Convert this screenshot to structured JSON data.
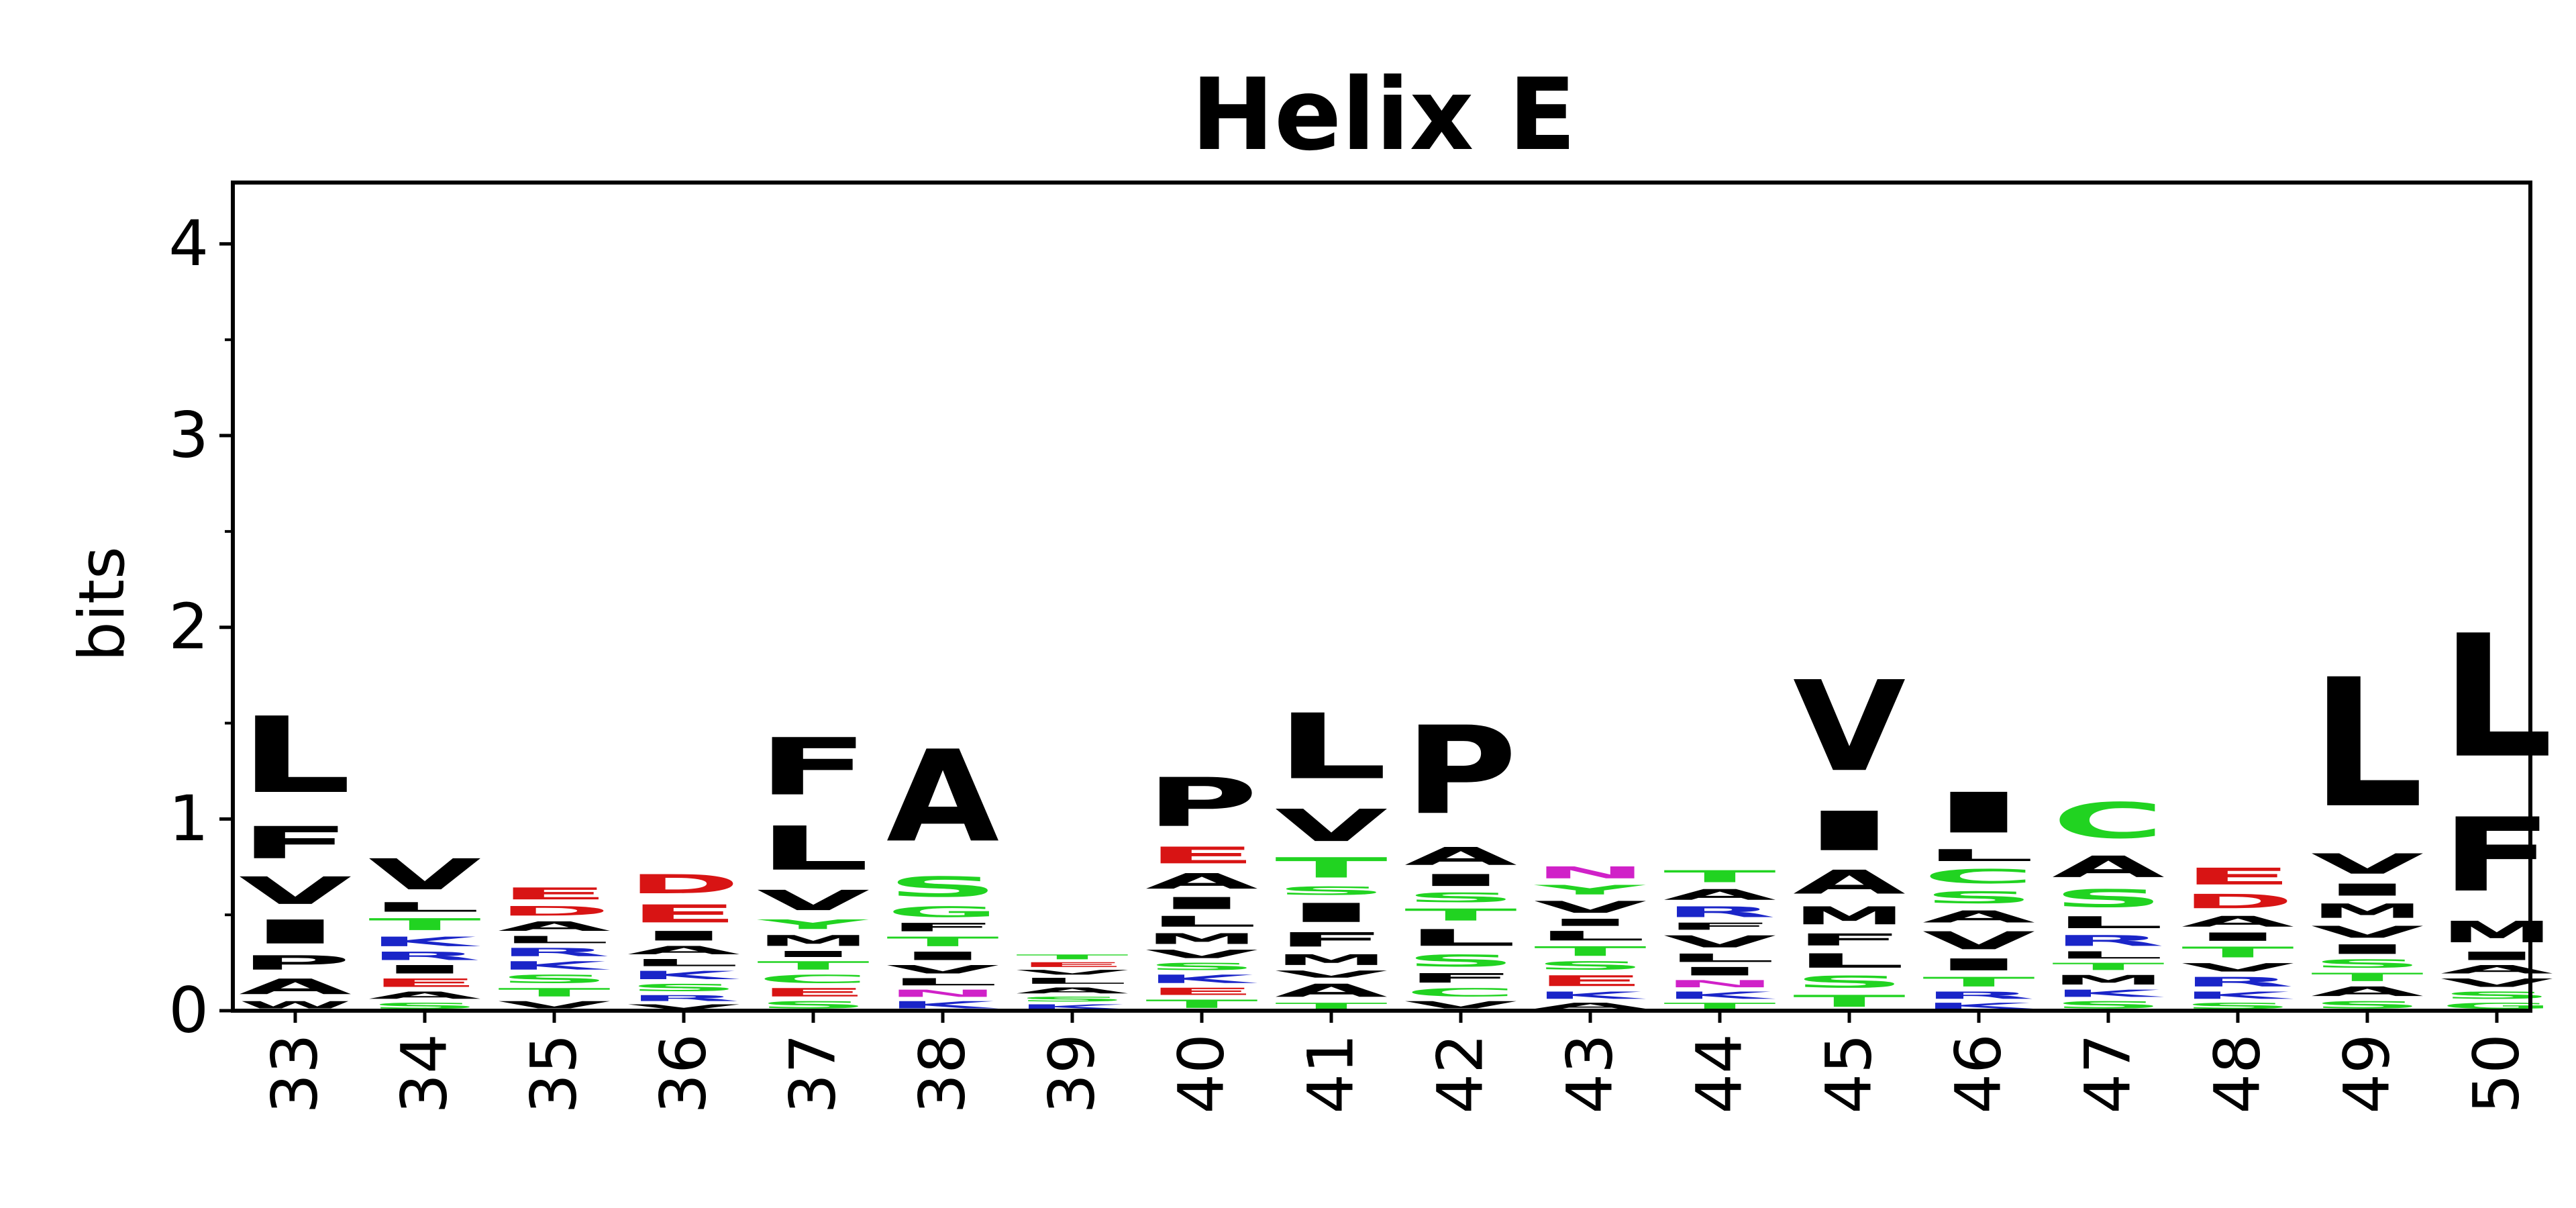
{
  "chart_data": {
    "type": "sequence-logo",
    "title": "Helix E",
    "ylabel": "bits",
    "xlabel": "",
    "ylim": [
      0,
      4.32
    ],
    "yticks_major": [
      0,
      1,
      2,
      3,
      4
    ],
    "yticks_minor": [
      0.5,
      1.5,
      2.5,
      3.5
    ],
    "grid": false,
    "colors": {
      "L": "#000000",
      "V": "#000000",
      "I": "#000000",
      "F": "#000000",
      "A": "#000000",
      "P": "#000000",
      "M": "#000000",
      "W": "#000000",
      "Y": "#21d321",
      "D": "#d81414",
      "E": "#d81414",
      "K": "#1a25c8",
      "R": "#1a25c8",
      "H": "#1a25c8",
      "S": "#21d321",
      "T": "#21d321",
      "G": "#21d321",
      "C": "#21d321",
      "N": "#d021c8",
      "Q": "#d021c8"
    },
    "positions": [
      {
        "label": "33",
        "letters": [
          [
            "W",
            0.06
          ],
          [
            "A",
            0.13
          ],
          [
            "P",
            0.12
          ],
          [
            "I",
            0.2
          ],
          [
            "V",
            0.23
          ],
          [
            "F",
            0.27
          ],
          [
            "L",
            0.64
          ]
        ]
      },
      {
        "label": "34",
        "letters": [
          [
            "S",
            0.05
          ],
          [
            "A",
            0.06
          ],
          [
            "E",
            0.07
          ],
          [
            "I",
            0.07
          ],
          [
            "R",
            0.07
          ],
          [
            "K",
            0.08
          ],
          [
            "T",
            0.1
          ],
          [
            "L",
            0.08
          ],
          [
            "V",
            0.26
          ]
        ]
      },
      {
        "label": "35",
        "letters": [
          [
            "V",
            0.06
          ],
          [
            "T",
            0.07
          ],
          [
            "S",
            0.07
          ],
          [
            "K",
            0.07
          ],
          [
            "R",
            0.07
          ],
          [
            "L",
            0.06
          ],
          [
            "A",
            0.08
          ],
          [
            "D",
            0.08
          ],
          [
            "E",
            0.1
          ]
        ]
      },
      {
        "label": "36",
        "letters": [
          [
            "V",
            0.04
          ],
          [
            "R",
            0.05
          ],
          [
            "S",
            0.06
          ],
          [
            "K",
            0.07
          ],
          [
            "L",
            0.06
          ],
          [
            "A",
            0.07
          ],
          [
            "I",
            0.08
          ],
          [
            "E",
            0.15
          ],
          [
            "D",
            0.16
          ]
        ]
      },
      {
        "label": "37",
        "letters": [
          [
            "S",
            0.06
          ],
          [
            "E",
            0.07
          ],
          [
            "C",
            0.07
          ],
          [
            "T",
            0.07
          ],
          [
            "I",
            0.05
          ],
          [
            "M",
            0.09
          ],
          [
            "Y",
            0.08
          ],
          [
            "V",
            0.17
          ],
          [
            "L",
            0.37
          ],
          [
            "F",
            0.48
          ]
        ]
      },
      {
        "label": "38",
        "letters": [
          [
            "K",
            0.06
          ],
          [
            "N",
            0.06
          ],
          [
            "L",
            0.06
          ],
          [
            "V",
            0.07
          ],
          [
            "I",
            0.07
          ],
          [
            "T",
            0.08
          ],
          [
            "F",
            0.07
          ],
          [
            "G",
            0.09
          ],
          [
            "S",
            0.17
          ],
          [
            "A",
            0.77
          ]
        ]
      },
      {
        "label": "39",
        "letters": [
          [
            "K",
            0.04
          ],
          [
            "S",
            0.04
          ],
          [
            "A",
            0.05
          ],
          [
            "L",
            0.05
          ],
          [
            "V",
            0.04
          ],
          [
            "E",
            0.04
          ],
          [
            "T",
            0.04
          ]
        ]
      },
      {
        "label": "40",
        "letters": [
          [
            "T",
            0.07
          ],
          [
            "E",
            0.06
          ],
          [
            "K",
            0.07
          ],
          [
            "S",
            0.06
          ],
          [
            "V",
            0.07
          ],
          [
            "M",
            0.09
          ],
          [
            "L",
            0.09
          ],
          [
            "I",
            0.1
          ],
          [
            "A",
            0.13
          ],
          [
            "E",
            0.14
          ],
          [
            "P",
            0.41
          ]
        ]
      },
      {
        "label": "41",
        "letters": [
          [
            "T",
            0.05
          ],
          [
            "A",
            0.11
          ],
          [
            "V",
            0.06
          ],
          [
            "M",
            0.09
          ],
          [
            "F",
            0.12
          ],
          [
            "I",
            0.16
          ],
          [
            "S",
            0.07
          ],
          [
            "T",
            0.17
          ],
          [
            "V",
            0.27
          ],
          [
            "L",
            0.55
          ]
        ]
      },
      {
        "label": "42",
        "letters": [
          [
            "V",
            0.06
          ],
          [
            "C",
            0.07
          ],
          [
            "F",
            0.08
          ],
          [
            "S",
            0.1
          ],
          [
            "L",
            0.14
          ],
          [
            "T",
            0.1
          ],
          [
            "S",
            0.08
          ],
          [
            "I",
            0.1
          ],
          [
            "A",
            0.15
          ],
          [
            "P",
            0.74
          ]
        ]
      },
      {
        "label": "43",
        "letters": [
          [
            "A",
            0.05
          ],
          [
            "K",
            0.06
          ],
          [
            "E",
            0.09
          ],
          [
            "S",
            0.07
          ],
          [
            "T",
            0.08
          ],
          [
            "L",
            0.08
          ],
          [
            "I",
            0.06
          ],
          [
            "V",
            0.1
          ],
          [
            "Y",
            0.08
          ],
          [
            "N",
            0.1
          ]
        ]
      },
      {
        "label": "44",
        "letters": [
          [
            "T",
            0.05
          ],
          [
            "K",
            0.06
          ],
          [
            "N",
            0.06
          ],
          [
            "I",
            0.07
          ],
          [
            "L",
            0.07
          ],
          [
            "V",
            0.1
          ],
          [
            "F",
            0.06
          ],
          [
            "R",
            0.09
          ],
          [
            "A",
            0.09
          ],
          [
            "T",
            0.1
          ]
        ]
      },
      {
        "label": "45",
        "letters": [
          [
            "T",
            0.1
          ],
          [
            "S",
            0.1
          ],
          [
            "L",
            0.12
          ],
          [
            "F",
            0.1
          ],
          [
            "M",
            0.15
          ],
          [
            "A",
            0.2
          ],
          [
            "I",
            0.33
          ],
          [
            "V",
            0.76
          ]
        ]
      },
      {
        "label": "46",
        "letters": [
          [
            "K",
            0.05
          ],
          [
            "R",
            0.06
          ],
          [
            "T",
            0.08
          ],
          [
            "I",
            0.1
          ],
          [
            "V",
            0.15
          ],
          [
            "A",
            0.1
          ],
          [
            "S",
            0.1
          ],
          [
            "C",
            0.12
          ],
          [
            "L",
            0.1
          ],
          [
            "I",
            0.34
          ]
        ]
      },
      {
        "label": "47",
        "letters": [
          [
            "S",
            0.06
          ],
          [
            "K",
            0.06
          ],
          [
            "M",
            0.08
          ],
          [
            "T",
            0.06
          ],
          [
            "L",
            0.06
          ],
          [
            "R",
            0.09
          ],
          [
            "L",
            0.1
          ],
          [
            "S",
            0.15
          ],
          [
            "A",
            0.18
          ],
          [
            "C",
            0.3
          ]
        ]
      },
      {
        "label": "48",
        "letters": [
          [
            "S",
            0.05
          ],
          [
            "K",
            0.06
          ],
          [
            "R",
            0.08
          ],
          [
            "V",
            0.07
          ],
          [
            "T",
            0.09
          ],
          [
            "I",
            0.07
          ],
          [
            "A",
            0.09
          ],
          [
            "D",
            0.12
          ],
          [
            "E",
            0.14
          ]
        ]
      },
      {
        "label": "49",
        "letters": [
          [
            "S",
            0.06
          ],
          [
            "A",
            0.08
          ],
          [
            "T",
            0.07
          ],
          [
            "S",
            0.07
          ],
          [
            "I",
            0.08
          ],
          [
            "V",
            0.1
          ],
          [
            "M",
            0.12
          ],
          [
            "I",
            0.1
          ],
          [
            "V",
            0.17
          ],
          [
            "L",
            1.08
          ]
        ]
      },
      {
        "label": "50",
        "letters": [
          [
            "G",
            0.05
          ],
          [
            "S",
            0.06
          ],
          [
            "V",
            0.07
          ],
          [
            "A",
            0.07
          ],
          [
            "I",
            0.07
          ],
          [
            "M",
            0.18
          ],
          [
            "F",
            0.62
          ],
          [
            "L",
            1.03
          ]
        ]
      }
    ]
  }
}
